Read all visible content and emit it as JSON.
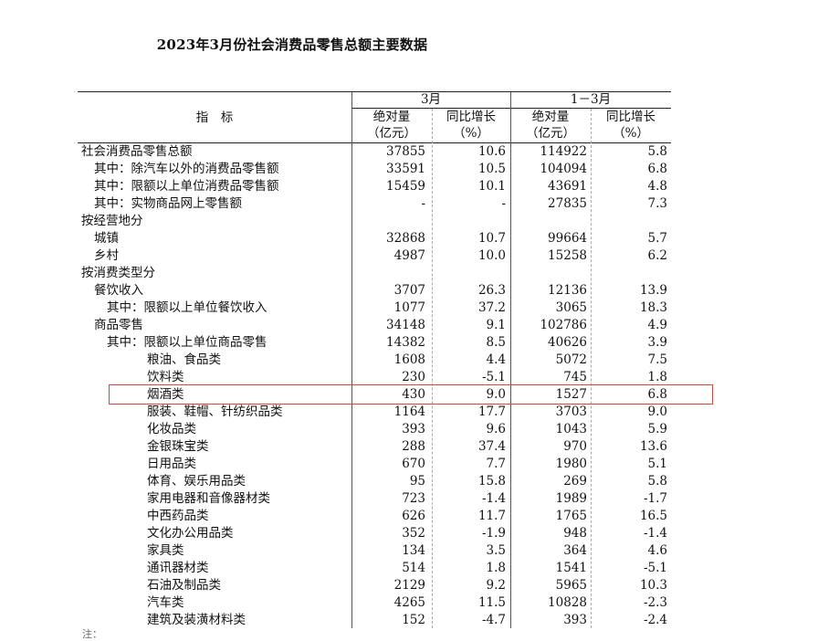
{
  "title": "2023年3月份社会消费品零售总额主要数据",
  "header": {
    "indicator": "指　标",
    "period_march": "3月",
    "period_q1": "1－3月",
    "abs_label": "绝对量",
    "abs_unit": "（亿元）",
    "growth_label": "同比增长",
    "growth_unit": "（%）"
  },
  "rows": [
    {
      "label": "社会消费品零售总额",
      "level": 0,
      "values": [
        "37855",
        "10.6",
        "114922",
        "5.8"
      ]
    },
    {
      "label": "其中：除汽车以外的消费品零售额",
      "level": 1,
      "values": [
        "33591",
        "10.5",
        "104094",
        "6.8"
      ]
    },
    {
      "label": "其中：限额以上单位消费品零售额",
      "level": 1,
      "values": [
        "15459",
        "10.1",
        "43691",
        "4.8"
      ]
    },
    {
      "label": "其中：实物商品网上零售额",
      "level": 1,
      "values": [
        "-",
        "-",
        "27835",
        "7.3"
      ]
    },
    {
      "label": "按经营地分",
      "level": 0,
      "values": [
        "",
        "",
        "",
        ""
      ]
    },
    {
      "label": "城镇",
      "level": 1,
      "values": [
        "32868",
        "10.7",
        "99664",
        "5.7"
      ]
    },
    {
      "label": "乡村",
      "level": 1,
      "values": [
        "4987",
        "10.0",
        "15258",
        "6.2"
      ]
    },
    {
      "label": "按消费类型分",
      "level": 0,
      "values": [
        "",
        "",
        "",
        ""
      ]
    },
    {
      "label": "餐饮收入",
      "level": 1,
      "values": [
        "3707",
        "26.3",
        "12136",
        "13.9"
      ]
    },
    {
      "label": "其中：限额以上单位餐饮收入",
      "level": 2,
      "values": [
        "1077",
        "37.2",
        "3065",
        "18.3"
      ]
    },
    {
      "label": "商品零售",
      "level": 1,
      "values": [
        "34148",
        "9.1",
        "102786",
        "4.9"
      ]
    },
    {
      "label": "其中：限额以上单位商品零售",
      "level": 2,
      "values": [
        "14382",
        "8.5",
        "40626",
        "3.9"
      ]
    },
    {
      "label": "粮油、食品类",
      "level": 3,
      "values": [
        "1608",
        "4.4",
        "5072",
        "7.5"
      ]
    },
    {
      "label": "饮料类",
      "level": 3,
      "values": [
        "230",
        "-5.1",
        "745",
        "1.8"
      ]
    },
    {
      "label": "烟酒类",
      "level": 3,
      "values": [
        "430",
        "9.0",
        "1527",
        "6.8"
      ]
    },
    {
      "label": "服装、鞋帽、针纺织品类",
      "level": 3,
      "values": [
        "1164",
        "17.7",
        "3703",
        "9.0"
      ]
    },
    {
      "label": "化妆品类",
      "level": 3,
      "values": [
        "393",
        "9.6",
        "1043",
        "5.9"
      ]
    },
    {
      "label": "金银珠宝类",
      "level": 3,
      "values": [
        "288",
        "37.4",
        "970",
        "13.6"
      ]
    },
    {
      "label": "日用品类",
      "level": 3,
      "values": [
        "670",
        "7.7",
        "1980",
        "5.1"
      ]
    },
    {
      "label": "体育、娱乐用品类",
      "level": 3,
      "values": [
        "95",
        "15.8",
        "269",
        "5.8"
      ]
    },
    {
      "label": "家用电器和音像器材类",
      "level": 3,
      "values": [
        "723",
        "-1.4",
        "1989",
        "-1.7"
      ]
    },
    {
      "label": "中西药品类",
      "level": 3,
      "values": [
        "626",
        "11.7",
        "1765",
        "16.5"
      ]
    },
    {
      "label": "文化办公用品类",
      "level": 3,
      "values": [
        "352",
        "-1.9",
        "948",
        "-1.4"
      ]
    },
    {
      "label": "家具类",
      "level": 3,
      "values": [
        "134",
        "3.5",
        "364",
        "4.6"
      ]
    },
    {
      "label": "通讯器材类",
      "level": 3,
      "values": [
        "514",
        "1.8",
        "1541",
        "-5.1"
      ]
    },
    {
      "label": "石油及制品类",
      "level": 3,
      "values": [
        "2129",
        "9.2",
        "5965",
        "10.3"
      ]
    },
    {
      "label": "汽车类",
      "level": 3,
      "values": [
        "4265",
        "11.5",
        "10828",
        "-2.3"
      ]
    },
    {
      "label": "建筑及装潢材料类",
      "level": 3,
      "values": [
        "152",
        "-4.7",
        "393",
        "-2.4"
      ]
    }
  ],
  "highlighted_row": "烟酒类",
  "highlight_color": "#d9453f",
  "footer": "注："
}
